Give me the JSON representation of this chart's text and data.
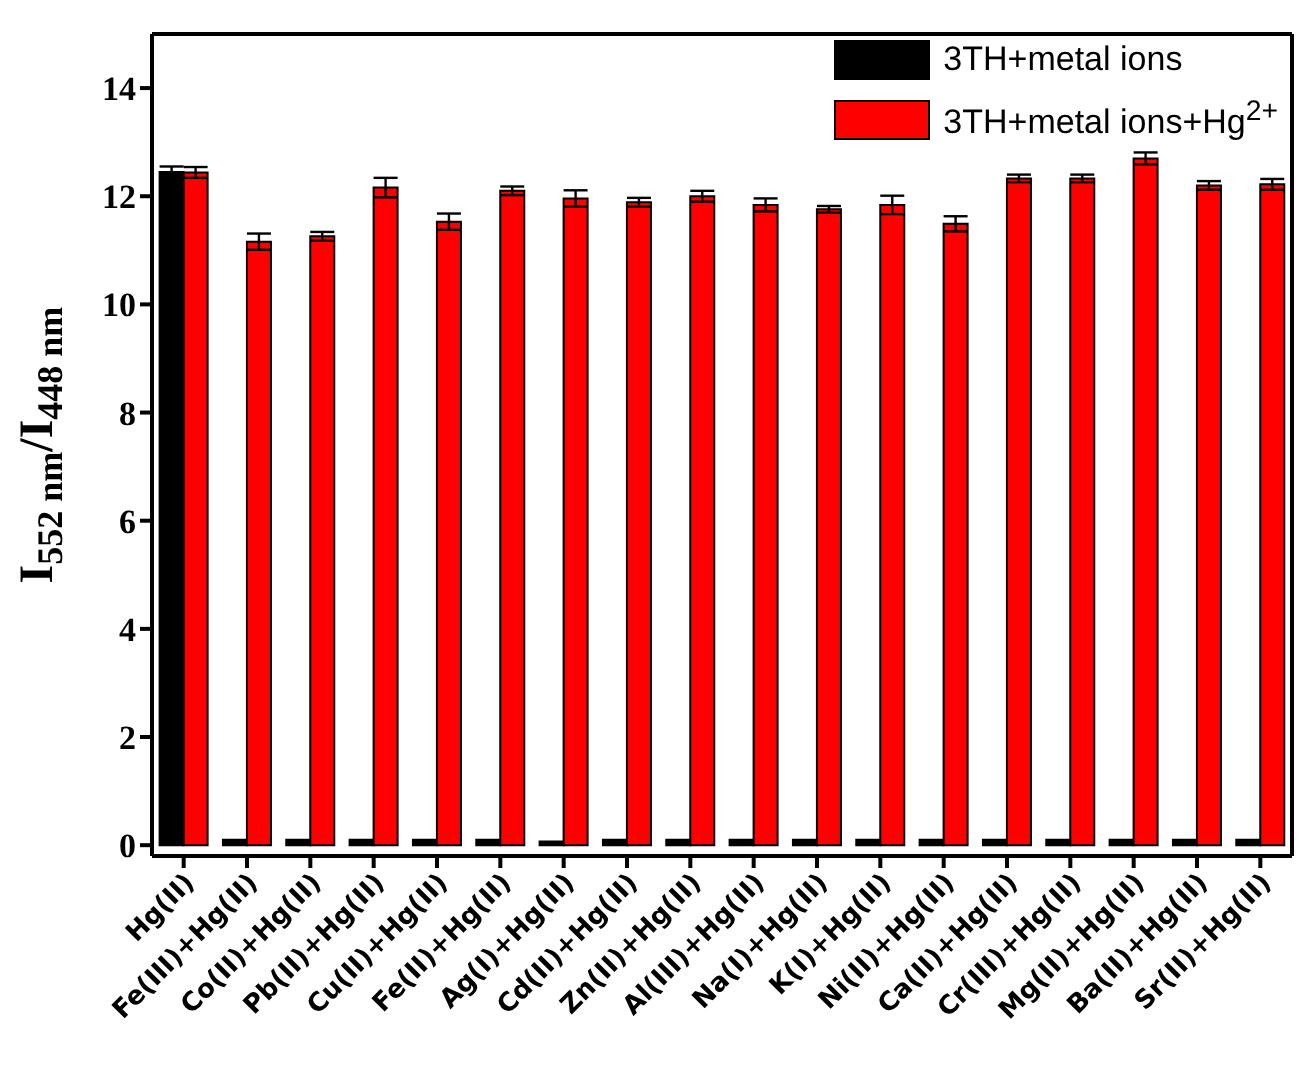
{
  "chart_data": {
    "type": "bar",
    "ylabel": "I$_{552 nm}$/I$_{448 nm}$",
    "categories": [
      "Hg(II)",
      "Fe(III)+Hg(II)",
      "Co(II)+Hg(II)",
      "Pb(II)+Hg(II)",
      "Cu(II)+Hg(II)",
      "Fe(II)+Hg(II)",
      "Ag(I)+Hg(II)",
      "Cd(II)+Hg(II)",
      "Zn(II)+Hg(II)",
      "Al(III)+Hg(II)",
      "Na(I)+Hg(II)",
      "K(I)+Hg(II)",
      "Ni(II)+Hg(II)",
      "Ca(II)+Hg(II)",
      "Cr(III)+Hg(II)",
      "Mg(II)+Hg(II)",
      "Ba(II)+Hg(II)",
      "Sr(II)+Hg(II)"
    ],
    "series": [
      {
        "name": "3TH+metal ions",
        "color": "#000000",
        "values": [
          12.45,
          0.1,
          0.1,
          0.1,
          0.1,
          0.1,
          0.07,
          0.1,
          0.1,
          0.1,
          0.1,
          0.1,
          0.1,
          0.1,
          0.1,
          0.1,
          0.1,
          0.1
        ],
        "errors": [
          0.1,
          null,
          null,
          null,
          null,
          null,
          null,
          null,
          null,
          null,
          null,
          null,
          null,
          null,
          null,
          null,
          null,
          null
        ]
      },
      {
        "name": "3TH+metal ions+Hg$^{2+}$",
        "color": "#ff0000",
        "values": [
          12.44,
          11.16,
          11.26,
          12.16,
          11.53,
          12.1,
          11.96,
          11.89,
          12.0,
          11.84,
          11.76,
          11.84,
          11.49,
          12.33,
          12.33,
          12.7,
          12.2,
          12.22
        ],
        "errors": [
          0.1,
          0.15,
          0.08,
          0.18,
          0.15,
          0.08,
          0.15,
          0.08,
          0.1,
          0.12,
          0.06,
          0.17,
          0.14,
          0.07,
          0.07,
          0.11,
          0.08,
          0.1
        ]
      }
    ],
    "ylim": [
      -0.2,
      15
    ],
    "yticks": [
      0,
      2,
      4,
      6,
      8,
      10,
      12,
      14
    ],
    "grid": false,
    "legend": "top right"
  }
}
